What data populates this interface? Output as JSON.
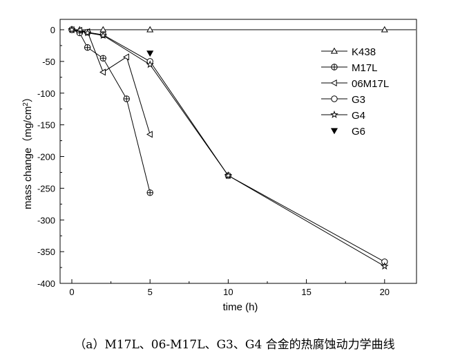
{
  "chart_data": {
    "type": "line",
    "xlabel": "time (h)",
    "ylabel_parts": {
      "main": "mass change（mg/cm",
      "sup": "2",
      "end": "）"
    },
    "xlim": [
      0,
      22
    ],
    "ylim": [
      -400,
      0
    ],
    "x_ticks": [
      0,
      5,
      10,
      15,
      20
    ],
    "y_ticks": [
      0,
      -50,
      -100,
      -150,
      -200,
      -250,
      -300,
      -350,
      -400
    ],
    "grid": false,
    "legend_position": "top-right",
    "series": [
      {
        "name": "K438",
        "marker": "triangle-up",
        "x": [
          0,
          0.5,
          2,
          5,
          20,
          22
        ],
        "y": [
          0,
          0,
          0,
          0,
          0,
          0
        ]
      },
      {
        "name": "M17L",
        "marker": "circle-plus",
        "x": [
          0,
          0.5,
          1,
          2,
          3.5,
          5
        ],
        "y": [
          0,
          -5,
          -28,
          -45,
          -109,
          -257
        ]
      },
      {
        "name": "06M17L",
        "marker": "triangle-left",
        "x": [
          0,
          0.5,
          1,
          2,
          3.5,
          5
        ],
        "y": [
          0,
          -1,
          -3,
          -67,
          -43,
          -165
        ]
      },
      {
        "name": "G3",
        "marker": "circle",
        "x": [
          0,
          1,
          2,
          5,
          10,
          20
        ],
        "y": [
          0,
          -4,
          -8,
          -50,
          -230,
          -366
        ]
      },
      {
        "name": "G4",
        "marker": "star",
        "x": [
          0,
          1,
          2,
          5,
          10,
          20
        ],
        "y": [
          0,
          -5,
          -9,
          -55,
          -230,
          -373
        ]
      },
      {
        "name": "G6",
        "marker": "triangle-down-filled",
        "x": [
          5
        ],
        "y": [
          -37
        ]
      }
    ]
  },
  "caption": "（a）M17L、06-M17L、G3、G4 合金的热腐蚀动力学曲线"
}
